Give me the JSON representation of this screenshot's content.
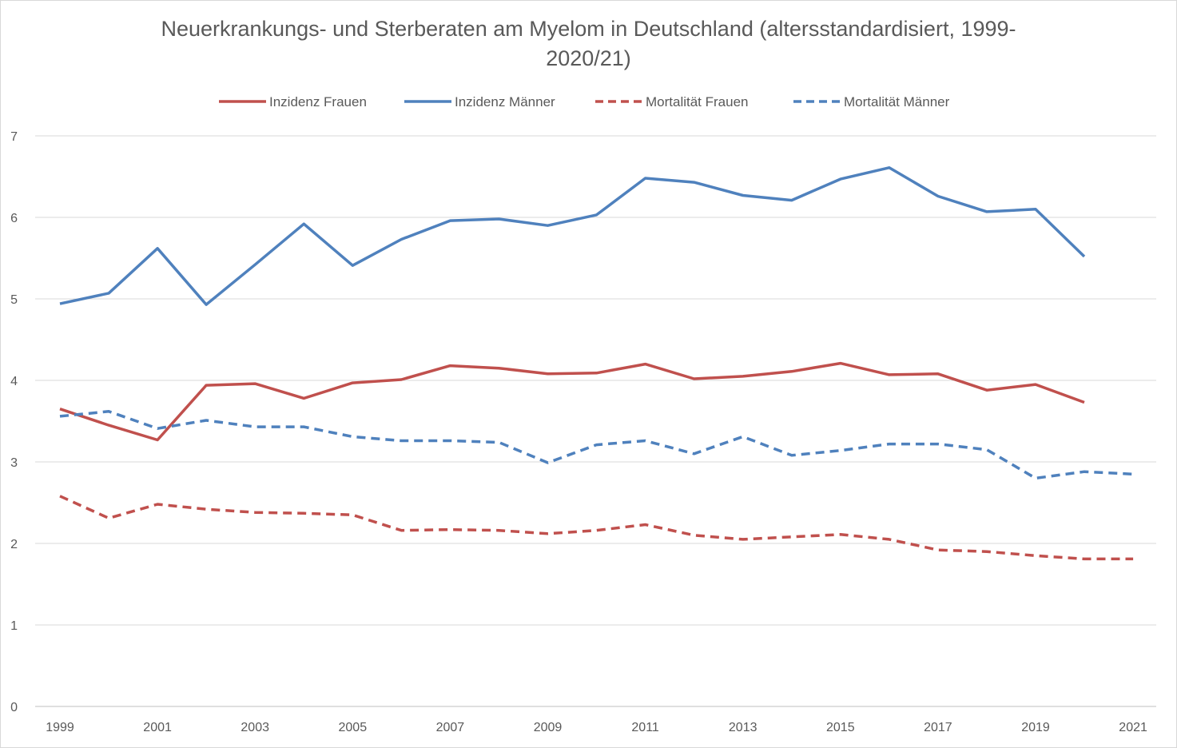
{
  "chart_data": {
    "type": "line",
    "title": "Neuerkrankungs- und Sterberaten am Myelom in Deutschland (altersstandardisiert, 1999-2020/21)",
    "title_lines": [
      "Neuerkrankungs- und Sterberaten am Myelom in Deutschland (altersstandardisiert, 1999-",
      "2020/21)"
    ],
    "xlabel": "",
    "ylabel": "",
    "x": [
      1999,
      2000,
      2001,
      2002,
      2003,
      2004,
      2005,
      2006,
      2007,
      2008,
      2009,
      2010,
      2011,
      2012,
      2013,
      2014,
      2015,
      2016,
      2017,
      2018,
      2019,
      2020,
      2021
    ],
    "x_tick_labels": [
      "1999",
      "2001",
      "2003",
      "2005",
      "2007",
      "2009",
      "2011",
      "2013",
      "2015",
      "2017",
      "2019",
      "2021"
    ],
    "ylim": [
      0,
      7
    ],
    "y_tick_labels": [
      "0",
      "1",
      "2",
      "3",
      "4",
      "5",
      "6",
      "7"
    ],
    "grid": "horizontal",
    "legend_position": "top",
    "series": [
      {
        "name": "Inzidenz Frauen",
        "color": "#c0504d",
        "dash": "solid",
        "values": [
          3.65,
          3.45,
          3.27,
          3.94,
          3.96,
          3.78,
          3.97,
          4.01,
          4.18,
          4.15,
          4.08,
          4.09,
          4.2,
          4.02,
          4.05,
          4.11,
          4.21,
          4.07,
          4.08,
          3.88,
          3.95,
          3.73,
          null
        ]
      },
      {
        "name": "Inzidenz Männer",
        "color": "#4f81bd",
        "dash": "solid",
        "values": [
          4.94,
          5.07,
          5.62,
          4.93,
          5.42,
          5.92,
          5.41,
          5.73,
          5.96,
          5.98,
          5.9,
          6.03,
          6.48,
          6.43,
          6.27,
          6.21,
          6.47,
          6.61,
          6.26,
          6.07,
          6.1,
          5.52,
          null
        ]
      },
      {
        "name": "Mortalität Frauen",
        "color": "#c0504d",
        "dash": "dashed",
        "values": [
          2.58,
          2.31,
          2.48,
          2.42,
          2.38,
          2.37,
          2.35,
          2.16,
          2.17,
          2.16,
          2.12,
          2.16,
          2.23,
          2.1,
          2.05,
          2.08,
          2.11,
          2.05,
          1.92,
          1.9,
          1.85,
          1.81,
          1.81
        ]
      },
      {
        "name": "Mortalität Männer",
        "color": "#4f81bd",
        "dash": "dashed",
        "values": [
          3.56,
          3.62,
          3.41,
          3.51,
          3.43,
          3.43,
          3.31,
          3.26,
          3.26,
          3.24,
          2.99,
          3.21,
          3.26,
          3.1,
          3.31,
          3.08,
          3.14,
          3.22,
          3.22,
          3.15,
          2.8,
          2.88,
          2.85
        ]
      }
    ]
  }
}
